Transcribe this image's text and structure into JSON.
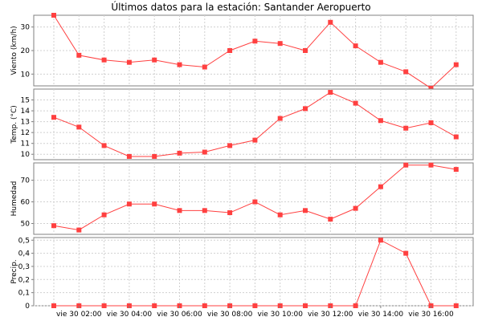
{
  "chart_data": {
    "type": "line",
    "title": "Últimos datos para la estación: Santander Aeropuerto",
    "series_color": "#ff4040",
    "grid": true,
    "x": [
      "01:00",
      "02:00",
      "03:00",
      "04:00",
      "05:00",
      "06:00",
      "07:00",
      "08:00",
      "09:00",
      "10:00",
      "11:00",
      "12:00",
      "13:00",
      "14:00",
      "15:00",
      "16:00",
      "17:00"
    ],
    "x_tick_labels": [
      "vie 30 02:00",
      "vie 30 04:00",
      "vie 30 06:00",
      "vie 30 08:00",
      "vie 30 10:00",
      "vie 30 12:00",
      "vie 30 14:00",
      "vie 30 16:00"
    ],
    "panels": [
      {
        "ylabel": "Viento (km/h)",
        "ylim": [
          5,
          35
        ],
        "yticks": [
          "10",
          "20",
          "30"
        ],
        "ytick_values": [
          10,
          20,
          30
        ],
        "values": [
          35,
          18,
          16,
          15,
          16,
          14,
          13,
          20,
          24,
          23,
          20,
          32,
          22,
          15,
          11,
          4,
          14
        ]
      },
      {
        "ylabel": "Temp. (°C)",
        "ylim": [
          9.5,
          16
        ],
        "yticks": [
          "10",
          "11",
          "12",
          "13",
          "14",
          "15"
        ],
        "ytick_values": [
          10,
          11,
          12,
          13,
          14,
          15
        ],
        "values": [
          13.4,
          12.5,
          10.8,
          9.8,
          9.8,
          10.1,
          10.2,
          10.8,
          11.3,
          13.3,
          14.2,
          15.7,
          14.7,
          13.1,
          12.4,
          12.9,
          11.6
        ]
      },
      {
        "ylabel": "Humedad",
        "ylim": [
          45,
          78
        ],
        "yticks": [
          "50",
          "60",
          "70"
        ],
        "ytick_values": [
          50,
          60,
          70
        ],
        "values": [
          49,
          47,
          54,
          59,
          59,
          56,
          56,
          55,
          60,
          54,
          56,
          52,
          57,
          67,
          77,
          77,
          75
        ]
      },
      {
        "ylabel": "Precip.",
        "ylim": [
          0,
          0.52
        ],
        "yticks": [
          "0",
          "0,1",
          "0,2",
          "0,3",
          "0,4",
          "0,5"
        ],
        "ytick_values": [
          0,
          0.1,
          0.2,
          0.3,
          0.4,
          0.5
        ],
        "values": [
          0,
          0,
          0,
          0,
          0,
          0,
          0,
          0,
          0,
          0,
          0,
          0,
          0,
          0.5,
          0.4,
          0,
          0
        ]
      }
    ]
  }
}
